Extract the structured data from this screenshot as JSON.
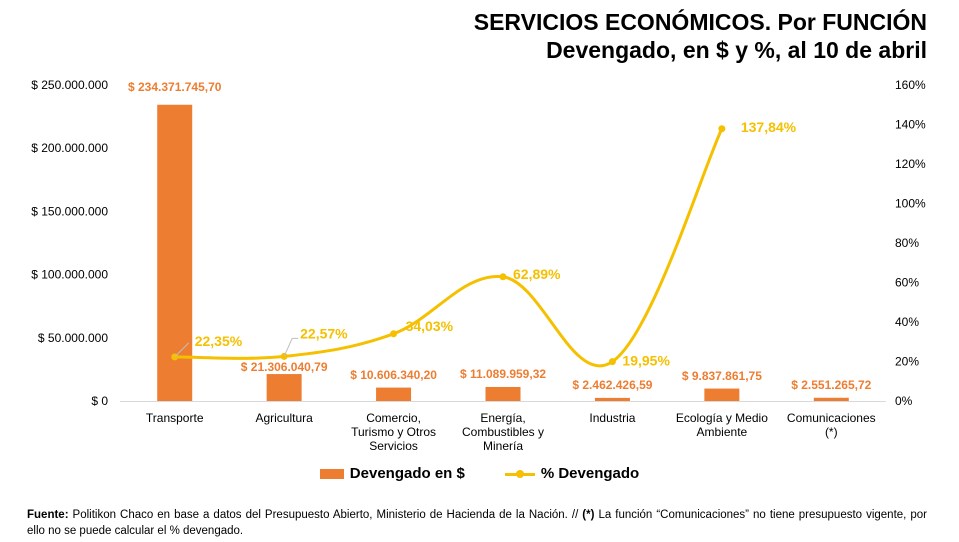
{
  "header": {
    "title_line1": "SERVICIOS ECONÓMICOS. Por FUNCIÓN",
    "title_line2": "Devengado, en $ y %, al 10 de abril"
  },
  "chart_data": {
    "type": "bar",
    "categories": [
      [
        "Transporte"
      ],
      [
        "Agricultura"
      ],
      [
        "Comercio,",
        "Turismo y Otros",
        "Servicios"
      ],
      [
        "Energía,",
        "Combustibles y",
        "Minería"
      ],
      [
        "Industria"
      ],
      [
        "Ecología y Medio",
        "Ambiente"
      ],
      [
        "Comunicaciones",
        "(*)"
      ]
    ],
    "series": [
      {
        "name": "Devengado en $",
        "type": "bar",
        "axis": "left",
        "color": "#ED7D31",
        "values": [
          234371745.7,
          21306040.79,
          10606340.2,
          11089959.32,
          2462426.59,
          9837861.75,
          2551265.72
        ],
        "labels": [
          "$ 234.371.745,70",
          "$ 21.306.040,79",
          "$ 10.606.340,20",
          "$ 11.089.959,32",
          "$ 2.462.426,59",
          "$ 9.837.861,75",
          "$ 2.551.265,72"
        ]
      },
      {
        "name": "% Devengado",
        "type": "line",
        "axis": "right",
        "color": "#F5C000",
        "values": [
          22.35,
          22.57,
          34.03,
          62.89,
          19.95,
          137.84,
          null
        ],
        "labels": [
          "22,35%",
          "22,57%",
          "34,03%",
          "62,89%",
          "19,95%",
          "137,84%",
          null
        ]
      }
    ],
    "y_left": {
      "ylim": [
        0,
        250000000
      ],
      "ticks": [
        0,
        50000000,
        100000000,
        150000000,
        200000000,
        250000000
      ],
      "tick_labels": [
        "$ 0",
        "$ 50.000.000",
        "$ 100.000.000",
        "$ 150.000.000",
        "$ 200.000.000",
        "$ 250.000.000"
      ]
    },
    "y_right": {
      "ylim": [
        0,
        160
      ],
      "ticks": [
        0,
        20,
        40,
        60,
        80,
        100,
        120,
        140,
        160
      ],
      "tick_labels": [
        "0%",
        "20%",
        "40%",
        "60%",
        "80%",
        "100%",
        "120%",
        "140%",
        "160%"
      ]
    },
    "legend_position": "bottom",
    "grid": false
  },
  "legend": {
    "bar_label": "Devengado en $",
    "line_label": "% Devengado"
  },
  "footnote": {
    "source_label": "Fuente:",
    "text_part1": " Politikon Chaco en base a datos del Presupuesto Abierto, Ministerio de Hacienda de la Nación. // ",
    "asterisk": "(*)",
    "text_part2": " La función “Comunicaciones”  no tiene presupuesto vigente,  por ello no se puede calcular el % devengado."
  }
}
